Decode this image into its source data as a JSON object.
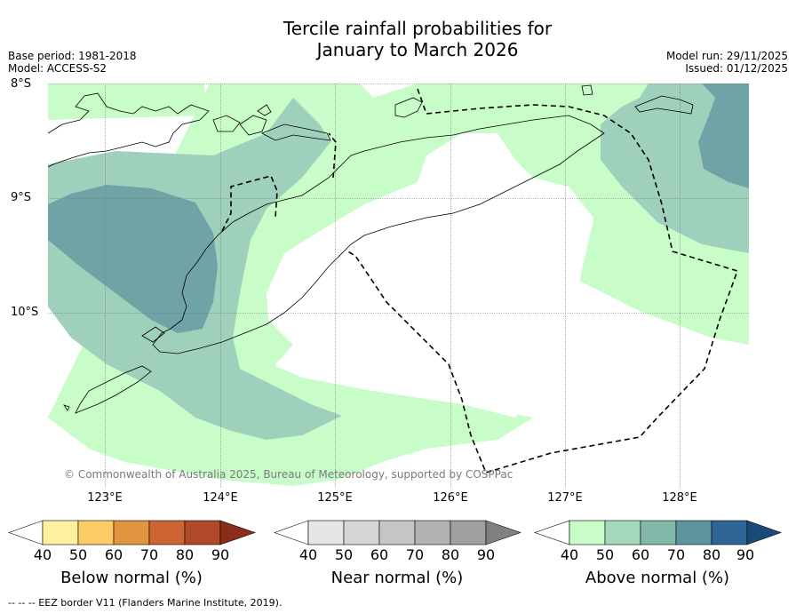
{
  "title_line1": "Tercile rainfall probabilities for",
  "title_line2": "January to March 2026",
  "meta_left": {
    "base_period": "Base period: 1981-2018",
    "model": "Model: ACCESS-S2"
  },
  "meta_right": {
    "model_run": "Model run: 29/11/2025",
    "issued": "Issued: 01/12/2025"
  },
  "lat_labels": [
    "8°S",
    "9°S",
    "10°S"
  ],
  "lon_labels": [
    "123°E",
    "124°E",
    "125°E",
    "126°E",
    "127°E",
    "128°E"
  ],
  "copyright": "© Commonwealth of Australia 2025, Bureau of Meteorology, supported by COSPPac",
  "colorbars": {
    "below": {
      "title": "Below normal (%)",
      "ticks": [
        "40",
        "50",
        "60",
        "70",
        "80",
        "90"
      ],
      "colors": [
        "#ffffff",
        "#fff0a0",
        "#fecc66",
        "#e19540",
        "#cc6433",
        "#b0492a",
        "#8c2d1b"
      ]
    },
    "near": {
      "title": "Near normal (%)",
      "ticks": [
        "40",
        "50",
        "60",
        "70",
        "80",
        "90"
      ],
      "colors": [
        "#ffffff",
        "#e6e6e6",
        "#d6d6d6",
        "#c6c6c6",
        "#b2b2b2",
        "#a0a0a0",
        "#808080"
      ]
    },
    "above": {
      "title": "Above normal (%)",
      "ticks": [
        "40",
        "50",
        "60",
        "70",
        "80",
        "90"
      ],
      "colors": [
        "#ffffff",
        "#c8fcc8",
        "#a4d8bc",
        "#82b8aa",
        "#5c94a0",
        "#2f6496",
        "#1a4a7a"
      ]
    }
  },
  "map_colors": {
    "above_40": "#c8fcc8",
    "above_50": "#9fd0bb",
    "above_60": "#6fa3a5",
    "near_40": "#e6e6e6"
  },
  "eez_note": "--  --  -- EEZ border V11 (Flanders Marine Institute, 2019)."
}
